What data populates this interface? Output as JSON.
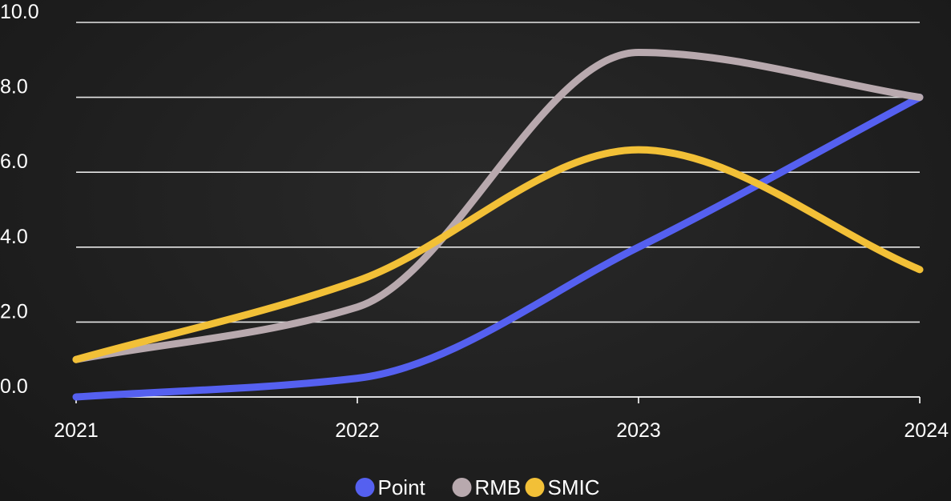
{
  "chart_data": {
    "type": "line",
    "title": "",
    "xlabel": "",
    "ylabel": "",
    "x": [
      "2021",
      "2022",
      "2023",
      "2024"
    ],
    "ylim": [
      0,
      10
    ],
    "y_ticks": [
      "0.0",
      "2.0",
      "4.0",
      "6.0",
      "8.0",
      "10.0"
    ],
    "grid": true,
    "smooth": true,
    "legend_position": "bottom",
    "series": [
      {
        "name": "Point",
        "color": "#5560f0",
        "values": [
          0.0,
          0.5,
          4.0,
          8.0
        ]
      },
      {
        "name": "RMB",
        "color": "#b8a9ae",
        "values": [
          1.0,
          2.4,
          9.2,
          8.0
        ]
      },
      {
        "name": "SMIC",
        "color": "#f2c037",
        "values": [
          1.0,
          3.1,
          6.6,
          3.4
        ]
      }
    ]
  }
}
